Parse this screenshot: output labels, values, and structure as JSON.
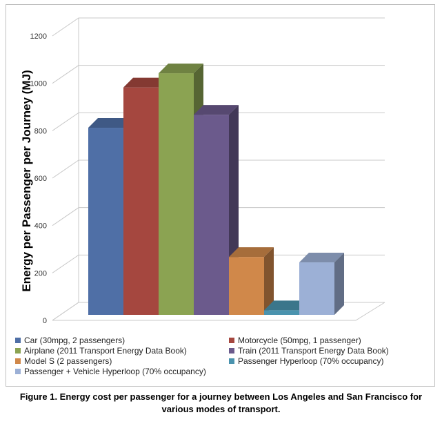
{
  "chart_data": {
    "type": "bar",
    "three_d": true,
    "ylabel": "Energy per Passenger per Journey (MJ)",
    "ylim": [
      0,
      1200
    ],
    "yticks": [
      0,
      200,
      400,
      600,
      800,
      1000,
      1200
    ],
    "grid": true,
    "legend_position": "bottom",
    "series": [
      {
        "name": "Car  (30mpg, 2 passengers)",
        "value": 830,
        "color": "#4F6FA6"
      },
      {
        "name": "Motorcycle  (50mpg, 1 passenger)",
        "value": 1000,
        "color": "#A5473F"
      },
      {
        "name": "Airplane  (2011 Transport Energy Data Book)",
        "value": 1060,
        "color": "#8BA352"
      },
      {
        "name": "Train  (2011 Transport Energy Data Book)",
        "value": 885,
        "color": "#6B5A8C"
      },
      {
        "name": "Model S  (2 passengers)",
        "value": 285,
        "color": "#D0884A"
      },
      {
        "name": "Passenger Hyperloop  (70% occupancy)",
        "value": 60,
        "color": "#4A93AE"
      },
      {
        "name": "Passenger + Vehicle Hyperloop  (70% occupancy)",
        "value": 262,
        "color": "#9CB0D6"
      }
    ]
  },
  "caption": {
    "line1": "Figure 1. Energy cost per passenger for a journey between Los Angeles and San Francisco for",
    "line2": "various modes of transport."
  }
}
